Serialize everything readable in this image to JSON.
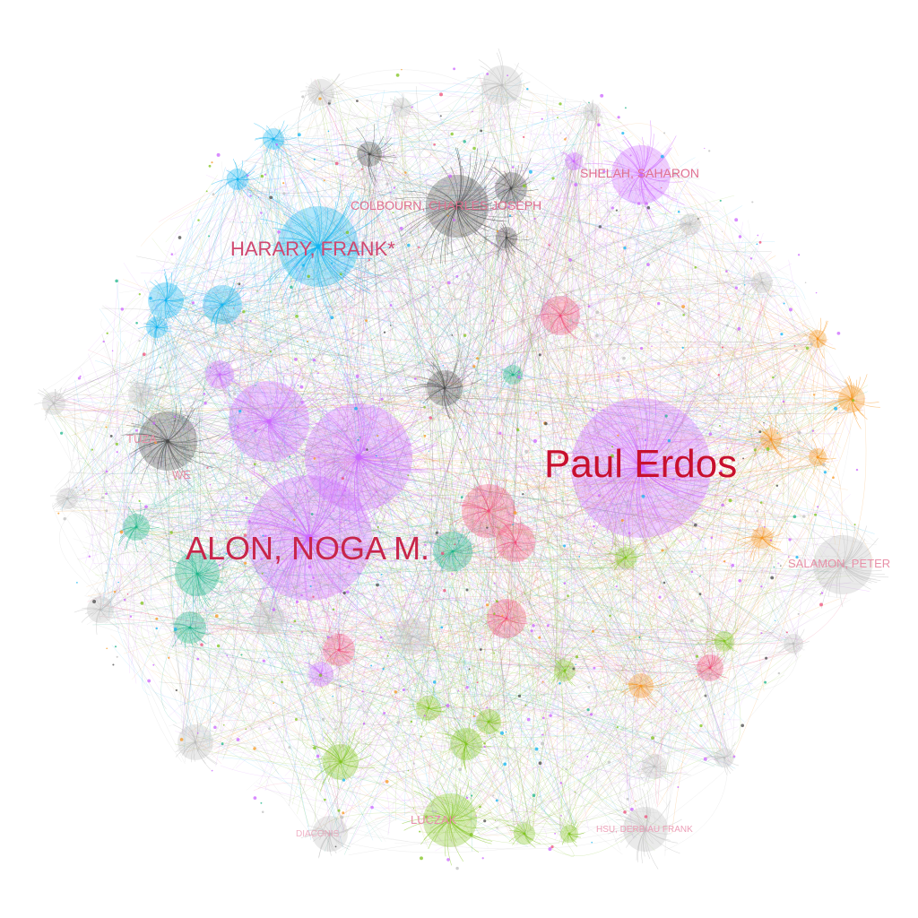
{
  "labels": {
    "paul_erdos": "Paul Erdos",
    "alon": "ALON, NOGA M.",
    "harary": "HARARY, FRANK*",
    "colbourn": "COLBOURN, CHARLES JOSEPH",
    "shelah": "SHELAH, SAHARON",
    "salamon": "SALAMON, PETER",
    "tuza": "TUZA",
    "we": "WE",
    "luczak": "LUCZAK",
    "hsu": "HSU, DERBIAU FRANK",
    "diaconis": "DIACONIS"
  },
  "palette": {
    "purple": "#cc66ff",
    "blue": "#11b4f0",
    "gray": "#4a4a4a",
    "light_gray": "#bdbdbd",
    "orange": "#f5951f",
    "green": "#7fc31c",
    "teal": "#1db48a",
    "pink": "#ee4d78",
    "label_red": "#c8102e"
  },
  "clusters": [
    {
      "id": "alon-purple",
      "color": "purple"
    },
    {
      "id": "erdos-purple",
      "color": "purple"
    },
    {
      "id": "harary-blue",
      "color": "blue"
    },
    {
      "id": "colbourn-gray",
      "color": "gray"
    },
    {
      "id": "shelah-purple",
      "color": "purple"
    },
    {
      "id": "salamon-orange",
      "color": "orange"
    },
    {
      "id": "luczak-green",
      "color": "green"
    },
    {
      "id": "teal-west",
      "color": "teal"
    },
    {
      "id": "pink-center",
      "color": "pink"
    },
    {
      "id": "periphery",
      "color": "light_gray"
    }
  ]
}
